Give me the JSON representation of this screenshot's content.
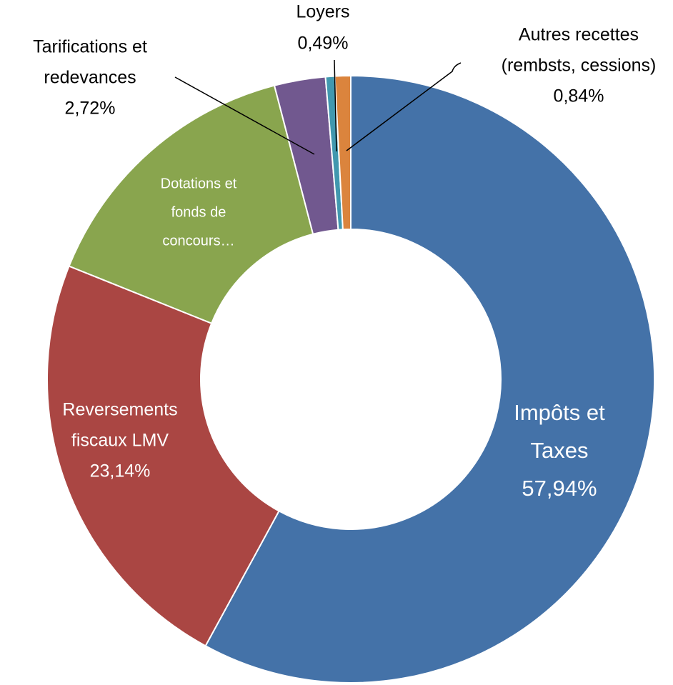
{
  "chart_data": {
    "type": "donut",
    "categories": [
      [
        "Impôts et",
        "Taxes"
      ],
      [
        "Reversements",
        "fiscaux LMV"
      ],
      [
        "Dotations et",
        "fonds de",
        "concours…"
      ],
      [
        "Tarifications et",
        "redevances"
      ],
      [
        "Loyers"
      ],
      [
        "Autres recettes",
        "(rembsts, cessions)"
      ]
    ],
    "values": [
      57.94,
      23.14,
      14.87,
      2.72,
      0.49,
      0.84
    ],
    "value_labels": [
      "57,94%",
      "23,14%",
      null,
      "2,72%",
      "0,49%",
      "0,84%"
    ],
    "colors": [
      "#4472a8",
      "#aa4643",
      "#89a54e",
      "#71588f",
      "#4198af",
      "#db843d"
    ]
  }
}
